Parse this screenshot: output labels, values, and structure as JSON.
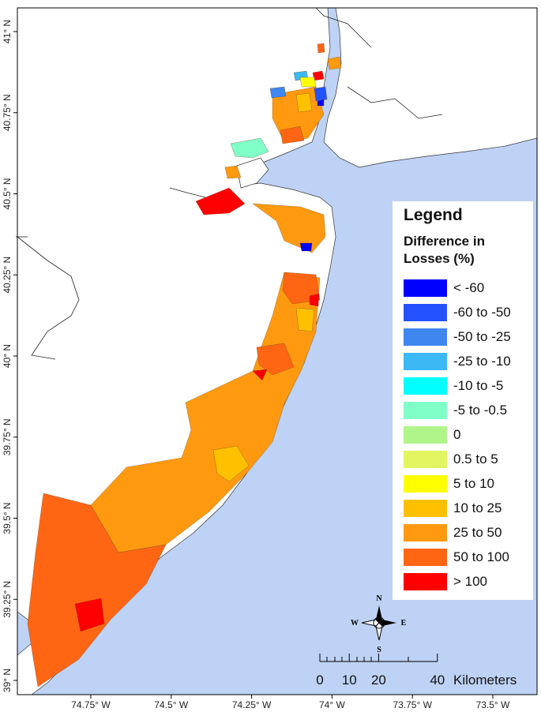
{
  "legend": {
    "title": "Legend",
    "subtitle": "Difference in Losses (%)",
    "items": [
      {
        "label": "< -60",
        "color": "#0000ff"
      },
      {
        "label": "-60 to -50",
        "color": "#2452ff"
      },
      {
        "label": "-50 to -25",
        "color": "#3f86f0"
      },
      {
        "label": "-25 to -10",
        "color": "#3cb8f5"
      },
      {
        "label": "-10 to -5",
        "color": "#00ffff"
      },
      {
        "label": "-5 to -0.5",
        "color": "#80ffc8"
      },
      {
        "label": "0",
        "color": "#b0f58a"
      },
      {
        "label": "0.5 to 5",
        "color": "#e0f560"
      },
      {
        "label": "5 to 10",
        "color": "#ffff00"
      },
      {
        "label": "10 to 25",
        "color": "#ffc000"
      },
      {
        "label": "25 to 50",
        "color": "#ff9a10"
      },
      {
        "label": "50 to 100",
        "color": "#ff6614"
      },
      {
        "label": "> 100",
        "color": "#ff0000"
      }
    ]
  },
  "latitude_ticks": [
    {
      "value": 41,
      "label": "41° N"
    },
    {
      "value": 40.75,
      "label": "40.75° N"
    },
    {
      "value": 40.5,
      "label": "40.5° N"
    },
    {
      "value": 40.25,
      "label": "40.25° N"
    },
    {
      "value": 40,
      "label": "40° N"
    },
    {
      "value": 39.75,
      "label": "39.75° N"
    },
    {
      "value": 39.5,
      "label": "39.5° N"
    },
    {
      "value": 39.25,
      "label": "39.25° N"
    },
    {
      "value": 39,
      "label": "39° N"
    }
  ],
  "longitude_ticks": [
    {
      "value": -74.75,
      "label": "74.75° W"
    },
    {
      "value": -74.5,
      "label": "74.5° W"
    },
    {
      "value": -74.25,
      "label": "74.25° W"
    },
    {
      "value": -74,
      "label": "74° W"
    },
    {
      "value": -73.75,
      "label": "73.75° W"
    },
    {
      "value": -73.5,
      "label": "73.5° W"
    }
  ],
  "compass": {
    "n": "N",
    "s": "S",
    "e": "E",
    "w": "W"
  },
  "scale_bar": {
    "ticks": [
      0,
      10,
      20,
      40
    ],
    "unit": "Kilometers"
  }
}
